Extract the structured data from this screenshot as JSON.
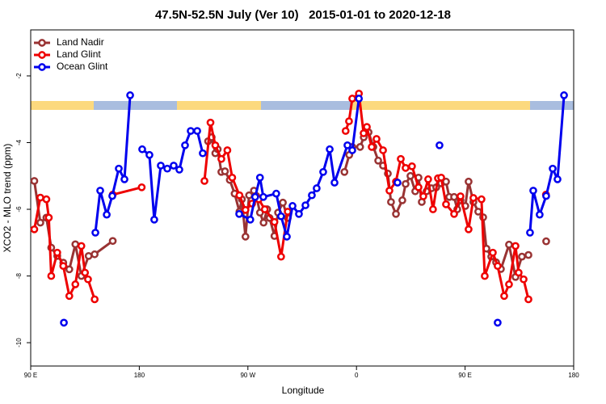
{
  "chart_data": {
    "type": "line",
    "title": "47.5N-52.5N July (Ver 10)   2015-01-01 to 2020-12-18",
    "x_label": "Longitude",
    "y_label": "XCO2 - MLO trend (ppm)",
    "xlim": [
      90,
      540
    ],
    "ylim": [
      -10.7,
      -0.62
    ],
    "xticks": [
      {
        "value": 90,
        "label": "90 E"
      },
      180,
      {
        "value": 270,
        "label": "90 W"
      },
      {
        "value": 360,
        "label": "0"
      },
      {
        "value": 450,
        "label": "90 E"
      },
      {
        "value": 540,
        "label": "180"
      }
    ],
    "yticks": [
      -2,
      -4,
      -6,
      -8,
      -10
    ],
    "legend": "top-left",
    "series": [
      {
        "name": "Land Nadir",
        "color": "#993333",
        "x": [
          93,
          98,
          103,
          107,
          112,
          117,
          122,
          127,
          132,
          138,
          143,
          158,
          null,
          237,
          240,
          243,
          245,
          248,
          251,
          255,
          259,
          263,
          265,
          268,
          271,
          275,
          277,
          280,
          283,
          286,
          288,
          292,
          295,
          299,
          303,
          null,
          350,
          354,
          356.5,
          363,
          366,
          370,
          374,
          378,
          382,
          386,
          388.6,
          392.7,
          398,
          400.7,
          404.7,
          408.7,
          411.4,
          414.1,
          418.1,
          422.1,
          426.1,
          430.2,
          434.2,
          436.9,
          440.9,
          443.5,
          446.2,
          450.2,
          452.9,
          456.9,
          460.9,
          465,
          467.7,
          471.7,
          475.7,
          479.7,
          486.4,
          491.8,
          497.1,
          502.5,
          null,
          517.2
        ],
        "values": [
          -5.15,
          -6.4,
          -6.25,
          -7.15,
          -7.4,
          -7.6,
          -7.8,
          -7.05,
          -8.0,
          -7.4,
          -7.35,
          -6.95,
          null,
          -3.96,
          -3.84,
          -4.32,
          -4.2,
          -4.88,
          -4.86,
          -5.12,
          -5.53,
          -6.07,
          -5.7,
          -6.82,
          -5.58,
          -5.44,
          -5.6,
          -6.1,
          -6.4,
          -6.0,
          -6.26,
          -6.8,
          -6.1,
          -5.8,
          -6.26,
          null,
          -4.88,
          -4.37,
          -4.13,
          -4.13,
          -3.84,
          -3.69,
          -4.13,
          -4.54,
          -4.69,
          -4.93,
          -5.78,
          -6.14,
          -5.73,
          -5.24,
          -5.0,
          -5.46,
          -5.05,
          -5.78,
          -5.46,
          -5.37,
          -5.34,
          -5.22,
          -5.17,
          -5.63,
          -5.63,
          -6.0,
          -5.73,
          -5.9,
          -5.17,
          -5.78,
          -6.07,
          -6.24,
          -7.18,
          -7.42,
          -7.59,
          -7.79,
          -7.06,
          -8.03,
          -7.42,
          -7.37,
          null,
          -6.96
        ]
      },
      {
        "name": "Land Glint",
        "color": "#ee0000",
        "x": [
          93,
          98,
          103,
          105,
          107,
          112,
          117,
          122,
          127,
          132,
          135,
          137.5,
          143,
          null,
          158,
          182,
          null,
          234,
          239,
          243,
          248,
          253,
          257,
          263,
          268,
          273.5,
          279,
          284,
          292,
          297.5,
          303,
          null,
          351,
          353.8,
          356.5,
          362,
          365.9,
          368.6,
          372.6,
          376.6,
          382,
          387.3,
          392.7,
          396.7,
          400.7,
          406,
          411.4,
          415.4,
          419.4,
          423.4,
          427.5,
          430.2,
          434.2,
          440.9,
          446.2,
          452.9,
          456.9,
          463.6,
          466.3,
          473,
          477,
          482.4,
          486.4,
          491.8,
          494.4,
          498.5,
          502.5,
          null,
          517
        ],
        "values": [
          -6.6,
          -5.65,
          -5.7,
          -6.25,
          -8.0,
          -7.3,
          -7.7,
          -8.6,
          -8.25,
          -7.1,
          -7.9,
          -8.1,
          -8.7,
          null,
          -5.56,
          -5.34,
          null,
          -5.15,
          -3.4,
          -4.08,
          -4.49,
          -4.23,
          -5.05,
          -5.58,
          -6.02,
          -5.83,
          -5.7,
          -6.0,
          -6.38,
          -7.42,
          -6.07,
          null,
          -3.65,
          -3.36,
          -2.68,
          -2.53,
          -3.72,
          -3.53,
          -4.13,
          -3.89,
          -4.23,
          -5.44,
          -5.17,
          -4.49,
          -4.76,
          -4.71,
          -5.34,
          -5.61,
          -5.1,
          -6.0,
          -5.07,
          -5.05,
          -5.85,
          -6.14,
          -5.61,
          -6.6,
          -5.66,
          -5.7,
          -8.0,
          -7.3,
          -7.7,
          -8.6,
          -8.25,
          -7.1,
          -7.9,
          -8.1,
          -8.7,
          null,
          -5.56
        ]
      },
      {
        "name": "Ocean Glint",
        "color": "#0000ee",
        "x": [
          117.5,
          null,
          143.6,
          147.6,
          153,
          157.6,
          163,
          167.7,
          172.4,
          null,
          182.4,
          188.4,
          192.4,
          197.8,
          203.2,
          208.5,
          213.2,
          217.9,
          222.6,
          228,
          232.6,
          null,
          262.8,
          272,
          276,
          280,
          282.8,
          293.5,
          297.5,
          302.3,
          307,
          312.3,
          317.7,
          323,
          327,
          332.4,
          337.8,
          341.8,
          352.5,
          356.5,
          362,
          null,
          394,
          null,
          428.8,
          null,
          477,
          null,
          503.8,
          506.5,
          511.8,
          517.2,
          522.6,
          526.6,
          532
        ],
        "values": [
          -9.4,
          null,
          -6.7,
          -5.44,
          -6.16,
          -5.6,
          -4.78,
          -5.1,
          -2.58,
          null,
          -4.2,
          -4.37,
          -6.31,
          -4.69,
          -4.78,
          -4.69,
          -4.81,
          -4.08,
          -3.65,
          -3.65,
          -4.32,
          null,
          -6.14,
          -6.31,
          -5.63,
          -5.05,
          -5.63,
          -5.53,
          -6.21,
          -6.82,
          -5.9,
          -6.14,
          -5.88,
          -5.58,
          -5.37,
          -4.88,
          -4.2,
          -5.2,
          -4.08,
          -4.23,
          -2.68,
          null,
          -5.2,
          null,
          -4.08,
          null,
          -9.4,
          null,
          -6.7,
          -5.44,
          -6.16,
          -5.6,
          -4.78,
          -5.1,
          -2.58
        ]
      }
    ]
  }
}
